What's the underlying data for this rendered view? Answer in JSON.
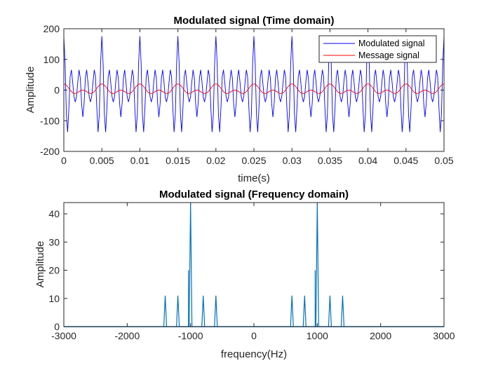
{
  "chart_data": [
    {
      "type": "line",
      "title": "Modulated signal (Time domain)",
      "xlabel": "time(s)",
      "ylabel": "Amplitude",
      "xlim": [
        0,
        0.05
      ],
      "ylim": [
        -200,
        200
      ],
      "xticks": [
        0,
        0.005,
        0.01,
        0.015,
        0.02,
        0.025,
        0.03,
        0.035,
        0.04,
        0.045,
        0.05
      ],
      "xtick_labels": [
        "0",
        "0.005",
        "0.01",
        "0.015",
        "0.02",
        "0.025",
        "0.03",
        "0.035",
        "0.04",
        "0.045",
        "0.05"
      ],
      "yticks": [
        -200,
        -100,
        0,
        100,
        200
      ],
      "ytick_labels": [
        "-200",
        "-100",
        "0",
        "100",
        "200"
      ],
      "legend_position": "top-right",
      "series": [
        {
          "name": "Modulated signal",
          "color": "#0000ff",
          "model": {
            "sample_rate_hz": 6000,
            "components": [
              {
                "amplitude": 44,
                "freq_hz": 1000
              },
              {
                "amplitude": 11,
                "freq_hz": 1200
              },
              {
                "amplitude": 11,
                "freq_hz": 800
              },
              {
                "amplitude": 11,
                "freq_hz": 1400
              },
              {
                "amplitude": 11,
                "freq_hz": 600
              }
            ]
          }
        },
        {
          "name": "Message signal",
          "color": "#ff0000",
          "model": {
            "sample_rate_hz": 6000,
            "components": [
              {
                "amplitude": 5,
                "freq_hz": 200
              },
              {
                "amplitude": 5,
                "freq_hz": 400
              }
            ]
          }
        }
      ]
    },
    {
      "type": "line",
      "title": "Modulated signal (Frequency domain)",
      "xlabel": "frequency(Hz)",
      "ylabel": "Amplitude",
      "xlim": [
        -3000,
        3000
      ],
      "ylim": [
        0,
        44
      ],
      "xticks": [
        -3000,
        -2000,
        -1000,
        0,
        1000,
        2000,
        3000
      ],
      "xtick_labels": [
        "-3000",
        "-2000",
        "-1000",
        "0",
        "1000",
        "2000",
        "3000"
      ],
      "yticks": [
        0,
        10,
        20,
        30,
        40
      ],
      "ytick_labels": [
        "0",
        "10",
        "20",
        "30",
        "40"
      ],
      "series": [
        {
          "color": "#0072bd",
          "peaks": [
            {
              "freq": -1400,
              "amplitude": 11
            },
            {
              "freq": -1200,
              "amplitude": 11
            },
            {
              "freq": -1000,
              "amplitude": 44
            },
            {
              "freq": -800,
              "amplitude": 11
            },
            {
              "freq": -600,
              "amplitude": 11
            },
            {
              "freq": 600,
              "amplitude": 11
            },
            {
              "freq": 800,
              "amplitude": 11
            },
            {
              "freq": 1000,
              "amplitude": 44
            },
            {
              "freq": 1200,
              "amplitude": 11
            },
            {
              "freq": 1400,
              "amplitude": 11
            }
          ]
        }
      ]
    }
  ]
}
